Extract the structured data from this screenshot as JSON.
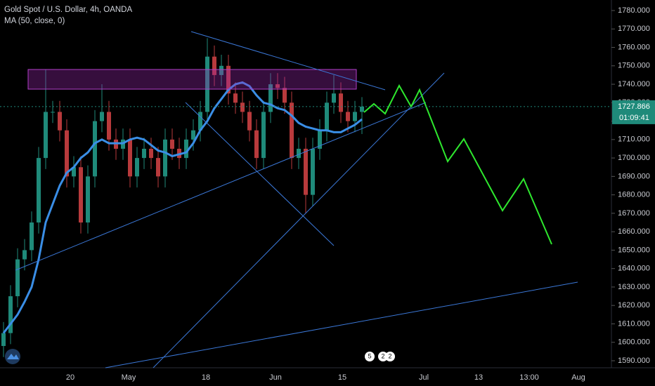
{
  "chart_data": {
    "type": "candlestick",
    "title": "Gold Spot / U.S. Dollar, 4h, OANDA",
    "indicator_label": "MA (50, close, 0)",
    "categories": [
      null,
      null,
      null,
      null,
      null,
      null,
      null,
      null,
      null,
      null,
      null,
      null,
      null,
      null,
      null,
      null,
      null,
      null,
      null,
      null,
      null,
      null,
      null,
      null,
      null,
      null,
      null,
      null,
      null,
      null,
      null,
      null,
      null,
      null,
      null,
      null,
      null,
      null,
      null,
      null,
      null,
      null,
      null,
      null,
      null,
      null,
      null,
      null,
      null,
      null,
      null,
      null
    ],
    "open": [
      1598,
      1605,
      1625,
      1645,
      1650,
      1665,
      1700,
      1725,
      1725,
      1715,
      1690,
      1695,
      1665,
      1690,
      1720,
      1725,
      1710,
      1705,
      1710,
      1690,
      1700,
      1705,
      1700,
      1690,
      1710,
      1705,
      1700,
      1710,
      1715,
      1725,
      1755,
      1745,
      1750,
      1735,
      1730,
      1725,
      1715,
      1700,
      1725,
      1740,
      1738,
      1730,
      1700,
      1705,
      1680,
      1705,
      1715,
      1730,
      1735,
      1725,
      1720,
      1725
    ],
    "high": [
      1611,
      1631,
      1651,
      1656,
      1671,
      1706,
      1748,
      1731,
      1731,
      1721,
      1701,
      1701,
      1696,
      1726,
      1740,
      1731,
      1716,
      1716,
      1716,
      1706,
      1711,
      1711,
      1706,
      1716,
      1716,
      1711,
      1716,
      1721,
      1731,
      1765,
      1761,
      1756,
      1756,
      1741,
      1736,
      1731,
      1721,
      1731,
      1746,
      1746,
      1744,
      1736,
      1711,
      1711,
      1711,
      1721,
      1736,
      1745,
      1741,
      1731,
      1731,
      1733
    ],
    "low": [
      1592,
      1599,
      1619,
      1639,
      1644,
      1659,
      1694,
      1719,
      1709,
      1684,
      1684,
      1659,
      1659,
      1684,
      1714,
      1704,
      1699,
      1699,
      1684,
      1684,
      1694,
      1694,
      1684,
      1684,
      1699,
      1694,
      1694,
      1704,
      1709,
      1719,
      1739,
      1739,
      1729,
      1724,
      1719,
      1709,
      1694,
      1694,
      1719,
      1732,
      1724,
      1694,
      1694,
      1670,
      1674,
      1699,
      1709,
      1724,
      1719,
      1714,
      1714,
      1713
    ],
    "close": [
      1605,
      1625,
      1645,
      1650,
      1665,
      1700,
      1725,
      1725,
      1715,
      1690,
      1695,
      1665,
      1690,
      1720,
      1725,
      1710,
      1705,
      1710,
      1690,
      1700,
      1705,
      1700,
      1690,
      1710,
      1705,
      1700,
      1710,
      1715,
      1725,
      1755,
      1745,
      1750,
      1735,
      1730,
      1725,
      1715,
      1700,
      1725,
      1740,
      1738,
      1730,
      1700,
      1705,
      1680,
      1705,
      1715,
      1730,
      1735,
      1725,
      1720,
      1725,
      1727.866
    ],
    "up_color": "#1f8a7a",
    "down_color": "#b83a3c",
    "ma": {
      "color": "#3a8ee6",
      "values": [
        1605,
        1610,
        1615,
        1622,
        1630,
        1645,
        1665,
        1675,
        1685,
        1692,
        1695,
        1700,
        1703,
        1708,
        1710,
        1708,
        1708,
        1708,
        1710,
        1711,
        1710,
        1707,
        1704,
        1703,
        1701,
        1702,
        1703,
        1708,
        1715,
        1720,
        1727,
        1732,
        1737,
        1740,
        1741,
        1739,
        1734,
        1730,
        1729,
        1727,
        1726,
        1723,
        1719,
        1717,
        1716,
        1715,
        1715,
        1714,
        1714,
        1716,
        1718,
        1721
      ]
    },
    "ylim": [
      1590,
      1780
    ],
    "yticks": [
      {
        "value": 1590,
        "label": "1590.000"
      },
      {
        "value": 1600,
        "label": "1600.000"
      },
      {
        "value": 1610,
        "label": "1610.000"
      },
      {
        "value": 1620,
        "label": "1620.000"
      },
      {
        "value": 1630,
        "label": "1630.000"
      },
      {
        "value": 1640,
        "label": "1640.000"
      },
      {
        "value": 1650,
        "label": "1650.000"
      },
      {
        "value": 1660,
        "label": "1660.000"
      },
      {
        "value": 1670,
        "label": "1670.000"
      },
      {
        "value": 1680,
        "label": "1680.000"
      },
      {
        "value": 1690,
        "label": "1690.000"
      },
      {
        "value": 1700,
        "label": "1700.000"
      },
      {
        "value": 1710,
        "label": "1710.000"
      },
      {
        "value": 1720,
        "label": "1720.000"
      },
      {
        "value": 1730,
        "label": "1730.000"
      },
      {
        "value": 1740,
        "label": "1740.000"
      },
      {
        "value": 1750,
        "label": "1750.000"
      },
      {
        "value": 1760,
        "label": "1760.000"
      },
      {
        "value": 1770,
        "label": "1770.000"
      },
      {
        "value": 1780,
        "label": "1780.000"
      }
    ],
    "xtick_labels": [
      "20",
      "May",
      "18",
      "Jun",
      "15",
      "Jul",
      "13",
      "13:00",
      "Aug"
    ],
    "countdown": "01:09:41",
    "event_badges": [
      "5",
      "2",
      "2"
    ]
  }
}
